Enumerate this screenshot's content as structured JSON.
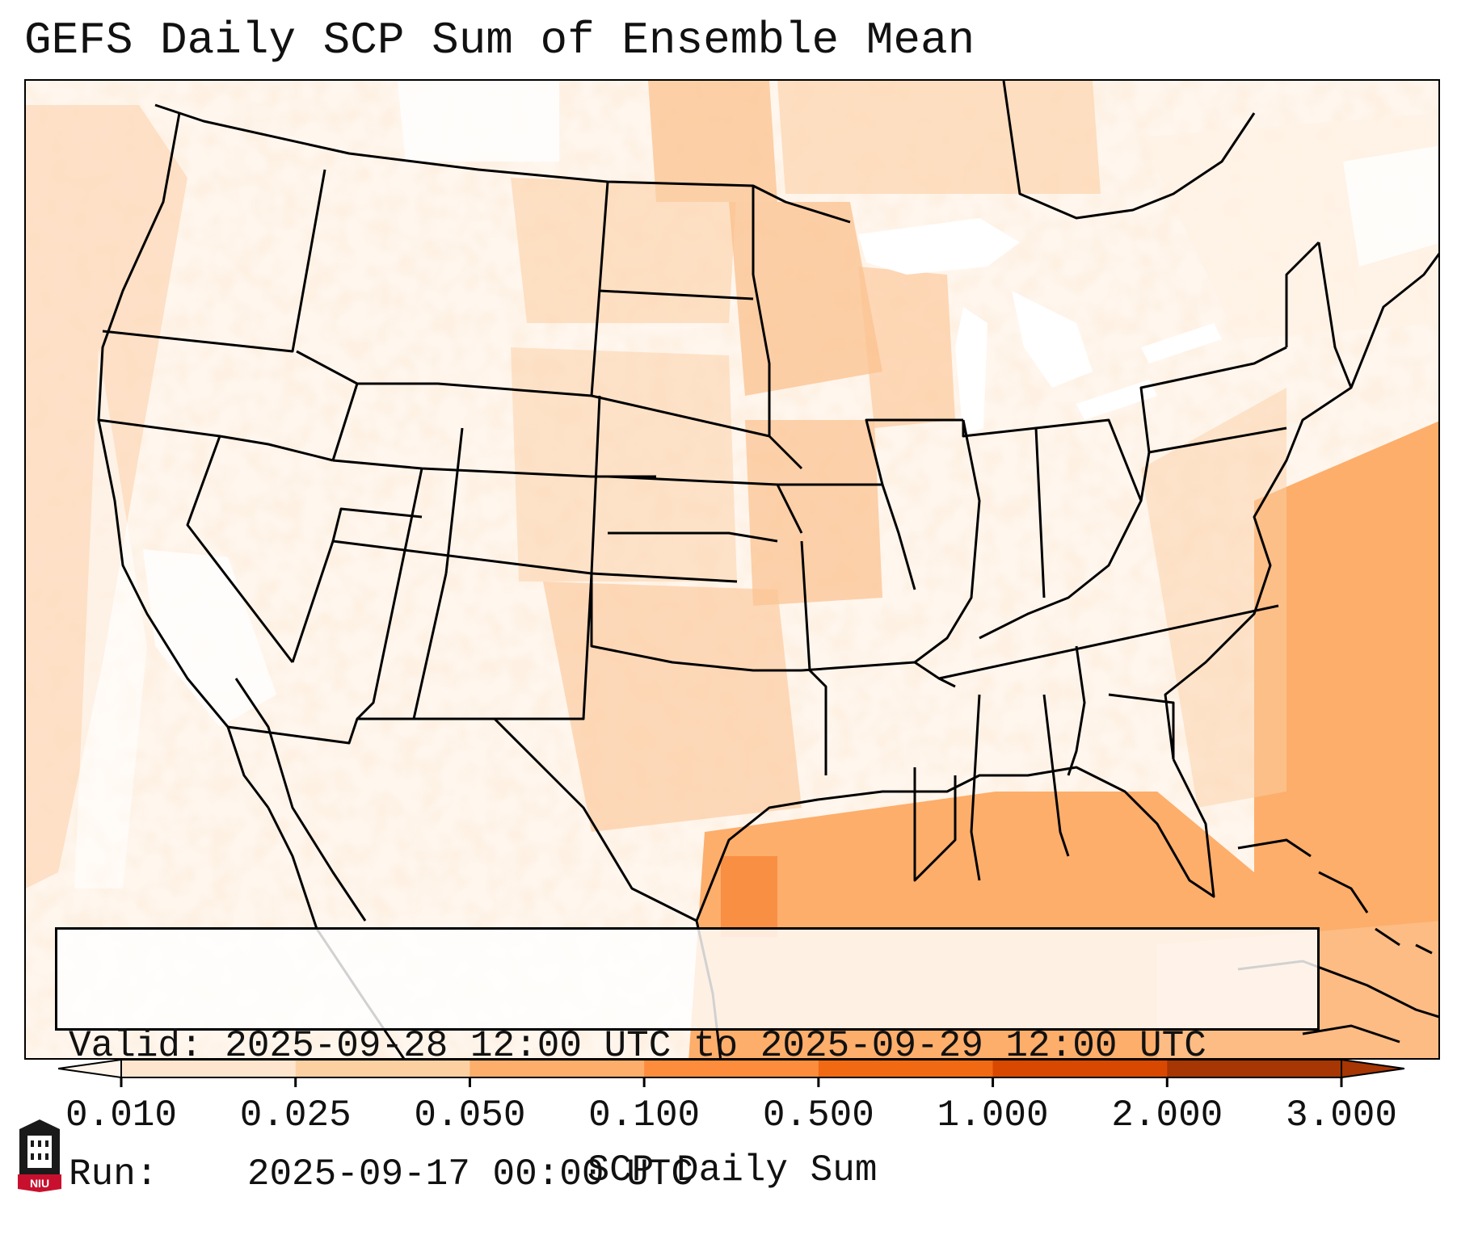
{
  "title": "GEFS Daily SCP Sum of Ensemble Mean",
  "info": {
    "valid_label": "Valid:",
    "valid_value": "2025-09-28 12:00 UTC to 2025-09-29 12:00 UTC",
    "run_label": "Run:",
    "run_value": "2025-09-17 00:00 UTC"
  },
  "colorbar": {
    "label": "SCP Daily Sum",
    "ticks": [
      "0.010",
      "0.025",
      "0.050",
      "0.100",
      "0.500",
      "1.000",
      "2.000",
      "3.000"
    ],
    "colors": [
      "#fff5eb",
      "#fee6ce",
      "#fdd0a2",
      "#fdae6b",
      "#fd8d3c",
      "#f16913",
      "#d94801",
      "#a63603"
    ]
  },
  "map": {
    "projection": "Lambert Conformal (CONUS)",
    "region": "Contiguous United States"
  },
  "logo": {
    "text": "NIU",
    "color": "#c8102e"
  }
}
